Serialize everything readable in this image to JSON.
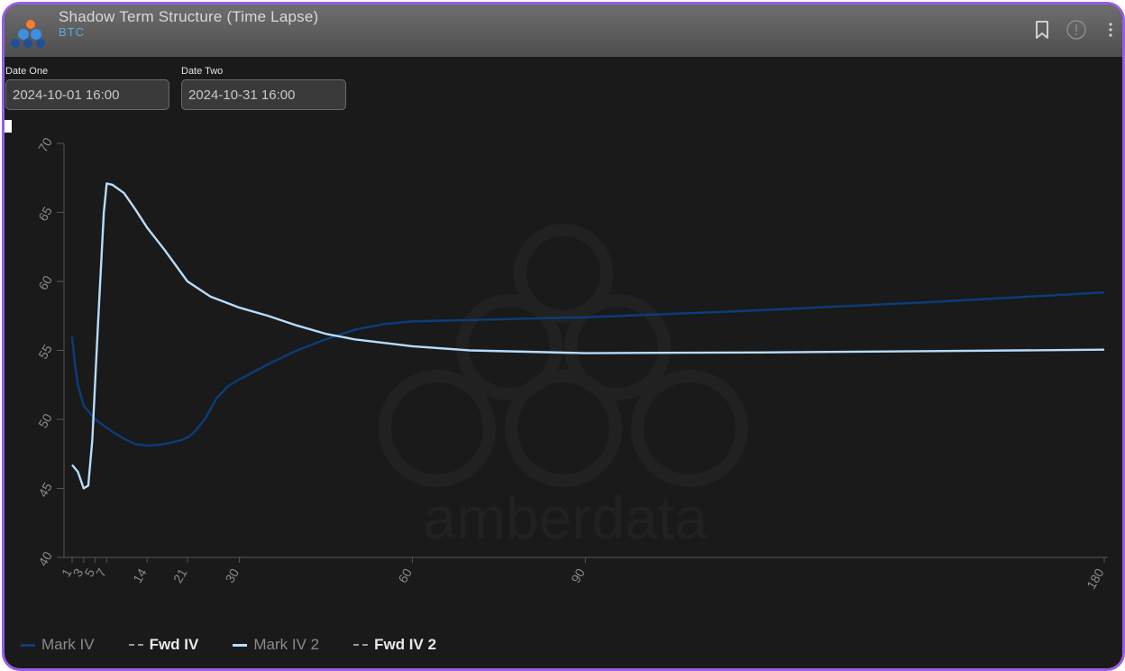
{
  "header": {
    "title": "Shadow Term Structure (Time Lapse)",
    "subtitle": "BTC"
  },
  "inputs": {
    "date_one_label": "Date One",
    "date_one_value": "2024-10-01 16:00",
    "date_two_label": "Date Two",
    "date_two_value": "2024-10-31 16:00"
  },
  "watermark": "amberdata",
  "colors": {
    "background": "#1a1a1a",
    "mark_iv": "#0a3d7a",
    "mark_iv_2": "#b7dcfa",
    "fwd": "#9a9a9a",
    "border": "#9a5ce6"
  },
  "chart_data": {
    "type": "line",
    "ylim": [
      40,
      70
    ],
    "yticks": [
      40,
      45,
      50,
      55,
      60,
      65,
      70
    ],
    "xlim": [
      0,
      180
    ],
    "xticks": [
      1,
      3,
      5,
      7,
      14,
      21,
      30,
      60,
      90,
      180
    ],
    "grid": false,
    "legend_position": "bottom-left",
    "series": [
      {
        "name": "Mark IV",
        "style": "solid",
        "x": [
          1,
          1.5,
          2,
          3,
          4,
          5,
          6,
          7,
          8,
          10,
          12,
          14,
          16,
          18,
          20,
          21,
          22,
          24,
          26,
          28,
          30,
          35,
          40,
          45,
          50,
          55,
          60,
          75,
          90,
          120,
          150,
          180
        ],
        "y": [
          56.0,
          54.0,
          52.5,
          51.0,
          50.5,
          50.0,
          49.7,
          49.4,
          49.1,
          48.6,
          48.2,
          48.1,
          48.15,
          48.3,
          48.5,
          48.7,
          49.0,
          50.0,
          51.5,
          52.4,
          52.9,
          54.0,
          55.0,
          55.8,
          56.5,
          56.9,
          57.1,
          57.25,
          57.4,
          57.9,
          58.5,
          59.2
        ]
      },
      {
        "name": "Fwd IV",
        "style": "dashed",
        "x": [],
        "y": []
      },
      {
        "name": "Mark IV 2",
        "style": "solid",
        "x": [
          1,
          2,
          3,
          3.8,
          4.5,
          5.5,
          6.5,
          7,
          8,
          10,
          12,
          14,
          17,
          21,
          25,
          30,
          35,
          40,
          45,
          50,
          60,
          70,
          90,
          120,
          150,
          180
        ],
        "y": [
          46.7,
          46.2,
          45.0,
          45.2,
          48.5,
          57.0,
          65.0,
          67.1,
          67.0,
          66.4,
          65.2,
          63.9,
          62.3,
          60.0,
          58.9,
          58.1,
          57.5,
          56.8,
          56.2,
          55.8,
          55.3,
          55.0,
          54.8,
          54.85,
          54.95,
          55.05
        ]
      },
      {
        "name": "Fwd IV 2",
        "style": "dashed",
        "x": [],
        "y": []
      }
    ]
  }
}
